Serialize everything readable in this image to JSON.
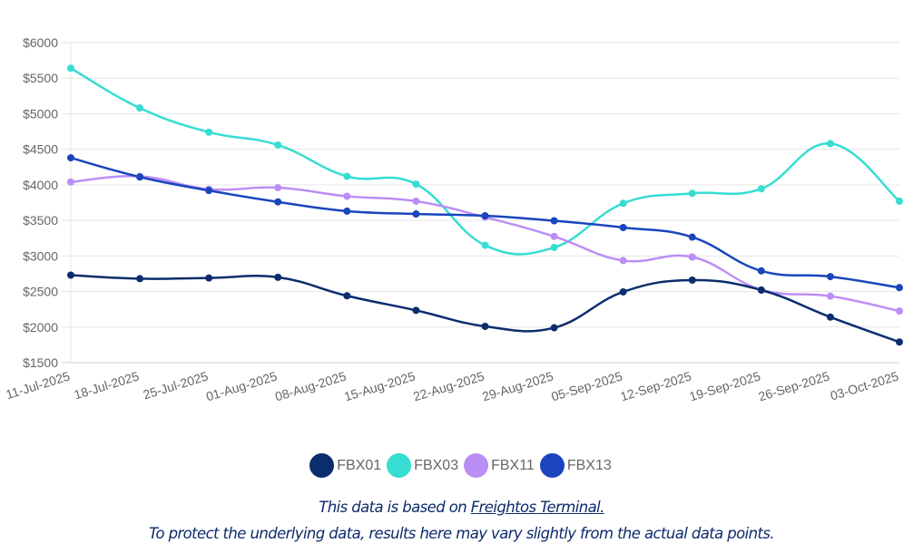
{
  "chart_data": {
    "type": "line",
    "title": "",
    "xlabel": "",
    "ylabel": "",
    "ylim": [
      1500,
      6000
    ],
    "y_ticks": [
      "$1500",
      "$2000",
      "$2500",
      "$3000",
      "$3500",
      "$4000",
      "$4500",
      "$5000",
      "$5500",
      "$6000"
    ],
    "y_tick_values": [
      1500,
      2000,
      2500,
      3000,
      3500,
      4000,
      4500,
      5000,
      5500,
      6000
    ],
    "grid": true,
    "legend_position": "bottom-center",
    "x": [
      "11-Jul-2025",
      "18-Jul-2025",
      "25-Jul-2025",
      "01-Aug-2025",
      "08-Aug-2025",
      "15-Aug-2025",
      "22-Aug-2025",
      "29-Aug-2025",
      "05-Sep-2025",
      "12-Sep-2025",
      "19-Sep-2025",
      "26-Sep-2025",
      "03-Oct-2025"
    ],
    "series": [
      {
        "name": "FBX01",
        "color": "#0b2d6e",
        "values": [
          2730,
          2680,
          2690,
          2700,
          2440,
          2235,
          2010,
          1990,
          2495,
          2660,
          2520,
          2140,
          1790
        ]
      },
      {
        "name": "FBX03",
        "color": "#36ddd2",
        "values": [
          5640,
          5080,
          4740,
          4560,
          4120,
          4010,
          3150,
          3120,
          3740,
          3880,
          3945,
          4580,
          3770
        ]
      },
      {
        "name": "FBX11",
        "color": "#bb8ef5",
        "values": [
          4040,
          4120,
          3940,
          3960,
          3840,
          3770,
          3545,
          3275,
          2935,
          2985,
          2525,
          2435,
          2225
        ]
      },
      {
        "name": "FBX13",
        "color": "#1a45bd",
        "values": [
          4380,
          4110,
          3920,
          3760,
          3630,
          3590,
          3565,
          3495,
          3400,
          3265,
          2790,
          2710,
          2555
        ]
      }
    ]
  },
  "footer": {
    "line1_prefix": "This data is based on ",
    "line1_link": "Freightos Terminal.",
    "line2": "To protect the underlying data, results here may vary slightly from the actual data points."
  }
}
